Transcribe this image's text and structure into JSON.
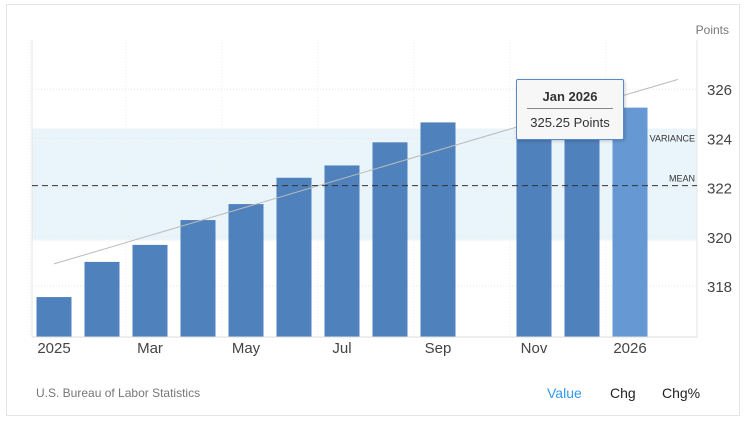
{
  "chart_data": {
    "type": "bar",
    "unit_label": "Points",
    "categories": [
      "2025-01",
      "2025-02",
      "2025-03",
      "2025-04",
      "2025-05",
      "2025-06",
      "2025-07",
      "2025-08",
      "2025-09",
      "2025-10",
      "2025-11",
      "2025-12",
      "2026-01"
    ],
    "x_tick_labels": [
      "2025",
      "Mar",
      "May",
      "Jul",
      "Sep",
      "Nov",
      "2026"
    ],
    "values": [
      317.55,
      318.98,
      319.67,
      320.68,
      321.33,
      322.4,
      322.9,
      323.84,
      324.65,
      null,
      324.55,
      324.7,
      325.25
    ],
    "ylim": [
      316,
      328
    ],
    "y_ticks": [
      318,
      320,
      322,
      324,
      326
    ],
    "mean": {
      "label": "MEAN",
      "value": 322.08
    },
    "variance": {
      "label": "VARIANCE",
      "range": [
        319.85,
        324.4
      ]
    },
    "trendline": {
      "start": 318.9,
      "end": 326.4
    },
    "grid": true,
    "bar_color": "#4f81bd",
    "highlight_color": "#6699d4",
    "tooltip": {
      "title": "Jan 2026",
      "value": "325.25 Points"
    }
  },
  "footer": {
    "source": "U.S. Bureau of Labor Statistics",
    "toggles": [
      "Value",
      "Chg",
      "Chg%"
    ],
    "active_color": "#3399ee"
  }
}
